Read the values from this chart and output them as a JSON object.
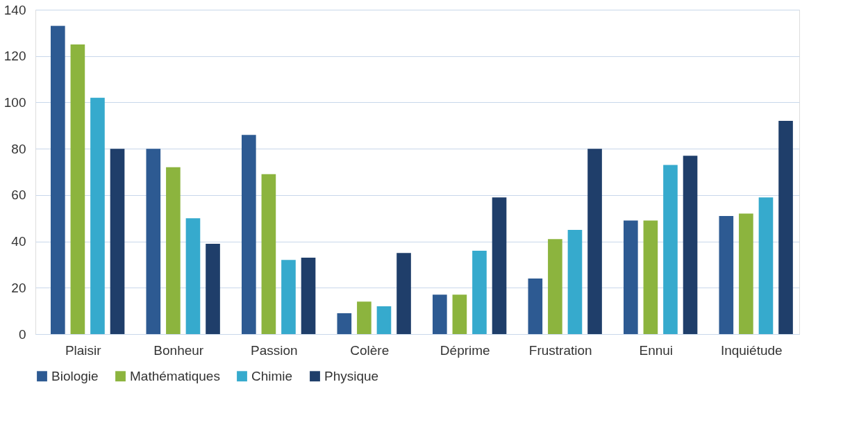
{
  "chart_data": {
    "type": "bar",
    "categories": [
      "Plaisir",
      "Bonheur",
      "Passion",
      "Colère",
      "Déprime",
      "Frustration",
      "Ennui",
      "Inquiétude"
    ],
    "series": [
      {
        "name": "Biologie",
        "color": "#2d5a92",
        "values": [
          133,
          80,
          86,
          9,
          17,
          24,
          49,
          51
        ]
      },
      {
        "name": "Mathématiques",
        "color": "#8cb43e",
        "values": [
          125,
          72,
          69,
          14,
          17,
          41,
          49,
          52
        ]
      },
      {
        "name": "Chimie",
        "color": "#36aacd",
        "values": [
          102,
          50,
          32,
          12,
          36,
          45,
          73,
          59
        ]
      },
      {
        "name": "Physique",
        "color": "#1f3e6a",
        "values": [
          80,
          39,
          33,
          35,
          59,
          80,
          77,
          92
        ]
      }
    ],
    "ylim": [
      0,
      140
    ],
    "yticks": [
      0,
      20,
      40,
      60,
      80,
      100,
      120,
      140
    ],
    "grid": "y",
    "legend": "bottom"
  }
}
